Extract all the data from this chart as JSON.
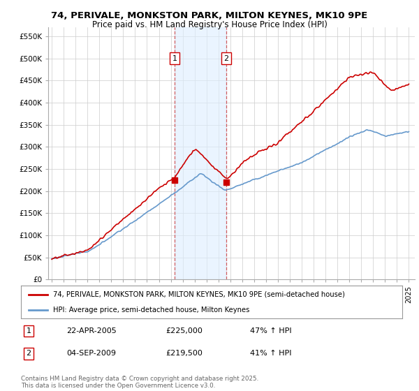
{
  "title": "74, PERIVALE, MONKSTON PARK, MILTON KEYNES, MK10 9PE",
  "subtitle": "Price paid vs. HM Land Registry's House Price Index (HPI)",
  "ylabel_ticks": [
    "£0",
    "£50K",
    "£100K",
    "£150K",
    "£200K",
    "£250K",
    "£300K",
    "£350K",
    "£400K",
    "£450K",
    "£500K",
    "£550K"
  ],
  "ytick_vals": [
    0,
    50000,
    100000,
    150000,
    200000,
    250000,
    300000,
    350000,
    400000,
    450000,
    500000,
    550000
  ],
  "ylim": [
    0,
    570000
  ],
  "sale1_year": 2005.31,
  "sale1_price": 225000,
  "sale1_date": "22-APR-2005",
  "sale1_hpi": "47% ↑ HPI",
  "sale2_year": 2009.67,
  "sale2_price": 219500,
  "sale2_date": "04-SEP-2009",
  "sale2_hpi": "41% ↑ HPI",
  "legend_line1": "74, PERIVALE, MONKSTON PARK, MILTON KEYNES, MK10 9PE (semi-detached house)",
  "legend_line2": "HPI: Average price, semi-detached house, Milton Keynes",
  "footer": "Contains HM Land Registry data © Crown copyright and database right 2025.\nThis data is licensed under the Open Government Licence v3.0.",
  "line_color_red": "#cc0000",
  "line_color_blue": "#6699cc",
  "background_color": "#ffffff",
  "grid_color": "#cccccc",
  "shade_color": "#ddeeff",
  "xlim_left": 1994.7,
  "xlim_right": 2025.5
}
